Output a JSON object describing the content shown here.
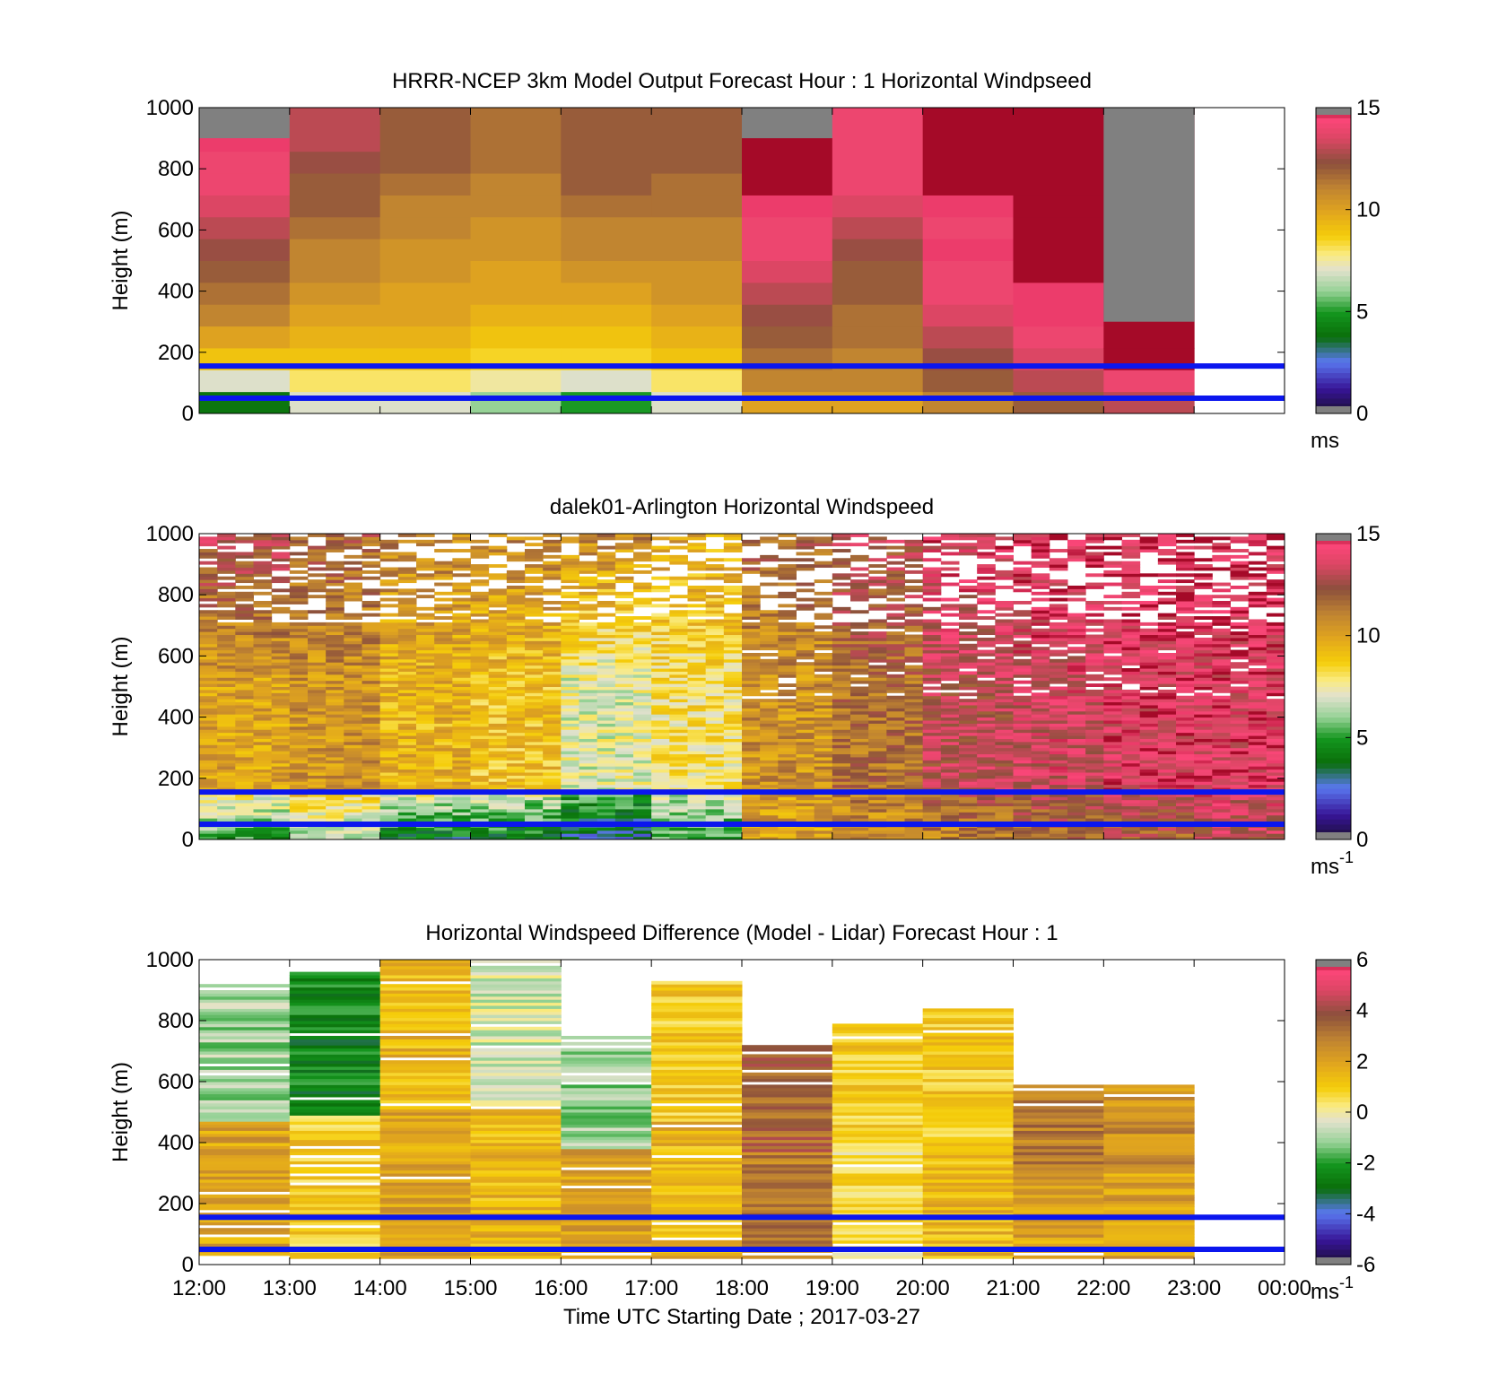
{
  "chart_data": [
    {
      "type": "heatmap",
      "title": "HRRR-NCEP 3km Model Output   Forecast Hour : 1 Horizontal Windpseed",
      "ylabel": "Height (m)",
      "xlabel": "",
      "ylim": [
        0,
        1000
      ],
      "yticks": [
        "0",
        "200",
        "400",
        "600",
        "800",
        "1000"
      ],
      "x_tick_labels": [],
      "colorbar": {
        "min": 0,
        "max": 15,
        "ticks": [
          "0",
          "5",
          "10",
          "15"
        ],
        "unit_base": "ms",
        "unit_exp": ""
      },
      "reference_lines": {
        "heights_m": [
          50,
          155
        ],
        "color": "#0b16ee"
      },
      "grid": false,
      "kind": "model",
      "hours": [
        12,
        13,
        14,
        15,
        16,
        17,
        18,
        19,
        20,
        21,
        22
      ],
      "column_speeds_ms": [
        {
          "hour": "12:00",
          "bottom_to_top": [
            4,
            7,
            9,
            10,
            11,
            11.5,
            12,
            12.5,
            13,
            13.5,
            14,
            14,
            14.5,
            15
          ]
        },
        {
          "hour": "13:00",
          "bottom_to_top": [
            7,
            8,
            9,
            9.5,
            10,
            10.5,
            11,
            11,
            11.5,
            12,
            12,
            12.5,
            13
          ]
        },
        {
          "hour": "14:00",
          "bottom_to_top": [
            7,
            8,
            9,
            9.5,
            10,
            10,
            10.5,
            10.5,
            11,
            11,
            11.5,
            12
          ]
        },
        {
          "hour": "15:00",
          "bottom_to_top": [
            6,
            7.5,
            8.5,
            9,
            9.5,
            10,
            10,
            10.5,
            10.5,
            11,
            11,
            11.5
          ]
        },
        {
          "hour": "16:00",
          "bottom_to_top": [
            5,
            7,
            8.5,
            9,
            9.5,
            10,
            10.5,
            11,
            11,
            11.5,
            12,
            12
          ]
        },
        {
          "hour": "17:00",
          "bottom_to_top": [
            7,
            8,
            9,
            9.5,
            10,
            10.5,
            10.5,
            11,
            11,
            11.5,
            11.5,
            12
          ]
        },
        {
          "hour": "18:00",
          "bottom_to_top": [
            10,
            11,
            11.5,
            12,
            12.5,
            13,
            13.5,
            14,
            14,
            14.5,
            15
          ]
        },
        {
          "hour": "19:00",
          "bottom_to_top": [
            10,
            11,
            11,
            11.5,
            11.5,
            12,
            12,
            12.5,
            13,
            13.5,
            14
          ]
        },
        {
          "hour": "20:00",
          "bottom_to_top": [
            11,
            12,
            12.5,
            13,
            13.5,
            14,
            14,
            14.5,
            14,
            14.5,
            15
          ]
        },
        {
          "hour": "21:00",
          "bottom_to_top": [
            12,
            13,
            13.5,
            14,
            14.5,
            14.5,
            15,
            15,
            15,
            15,
            15
          ]
        },
        {
          "hour": "22:00",
          "bottom_to_top": [
            13,
            14,
            15,
            15
          ]
        }
      ]
    },
    {
      "type": "heatmap",
      "title": "dalek01-Arlington  Horizontal Windspeed",
      "ylabel": "Height (m)",
      "xlabel": "",
      "ylim": [
        0,
        1000
      ],
      "yticks": [
        "0",
        "200",
        "400",
        "600",
        "800",
        "1000"
      ],
      "x_tick_labels": [],
      "colorbar": {
        "min": 0,
        "max": 15,
        "ticks": [
          "0",
          "5",
          "10",
          "15"
        ],
        "unit_base": "ms",
        "unit_exp": "-1"
      },
      "reference_lines": {
        "heights_m": [
          50,
          155
        ],
        "color": "#0b16ee"
      },
      "grid": false,
      "kind": "lidar",
      "columns_per_hour": 5,
      "hours": [
        12,
        13,
        14,
        15,
        16,
        17,
        18,
        19,
        20,
        21,
        22,
        23
      ],
      "typical_speed_profile_ms": [
        {
          "hour": "12:00",
          "low": 5,
          "mid": 10,
          "high": 13
        },
        {
          "hour": "13:00",
          "low": 6,
          "mid": 10.5,
          "high": 12
        },
        {
          "hour": "14:00",
          "low": 4,
          "mid": 9.5,
          "high": 11
        },
        {
          "hour": "15:00",
          "low": 4,
          "mid": 9,
          "high": 11
        },
        {
          "hour": "16:00",
          "low": 3,
          "mid": 7,
          "high": 11
        },
        {
          "hour": "17:00",
          "low": 5,
          "mid": 8,
          "high": 10
        },
        {
          "hour": "18:00",
          "low": 10,
          "mid": 10.5,
          "high": 12
        },
        {
          "hour": "19:00",
          "low": 10.5,
          "mid": 11.5,
          "high": 13
        },
        {
          "hour": "20:00",
          "low": 11,
          "mid": 13,
          "high": 14
        },
        {
          "hour": "21:00",
          "low": 11.5,
          "mid": 13.5,
          "high": 14.5
        },
        {
          "hour": "22:00",
          "low": 12,
          "mid": 14,
          "high": 14.5
        },
        {
          "hour": "23:00",
          "low": 13,
          "mid": 14,
          "high": 14.5
        }
      ]
    },
    {
      "type": "heatmap",
      "title": "Horizontal Windspeed Difference (Model - Lidar) Forecast Hour : 1",
      "ylabel": "Height (m)",
      "xlabel": "Time UTC  Starting Date ; 2017-03-27",
      "ylim": [
        0,
        1000
      ],
      "yticks": [
        "0",
        "200",
        "400",
        "600",
        "800",
        "1000"
      ],
      "x_tick_labels": [
        "12:00",
        "13:00",
        "14:00",
        "15:00",
        "16:00",
        "17:00",
        "18:00",
        "19:00",
        "20:00",
        "21:00",
        "22:00",
        "23:00",
        "00:00"
      ],
      "colorbar": {
        "min": -6,
        "max": 6,
        "ticks": [
          "-6",
          "-4",
          "-2",
          "0",
          "2",
          "4",
          "6"
        ],
        "unit_base": "ms",
        "unit_exp": "-1"
      },
      "reference_lines": {
        "heights_m": [
          50,
          155
        ],
        "color": "#0b16ee"
      },
      "grid": false,
      "kind": "diff",
      "column_differences_ms": [
        {
          "hour": "12:00",
          "top_m": 920,
          "typical": 2,
          "upper_part": -1
        },
        {
          "hour": "13:00",
          "top_m": 960,
          "typical": 1,
          "upper_part": -2.5
        },
        {
          "hour": "14:00",
          "top_m": 1000,
          "typical": 2,
          "upper_part": 1.5
        },
        {
          "hour": "15:00",
          "top_m": 1000,
          "typical": 1.5,
          "upper_part": -0.5
        },
        {
          "hour": "16:00",
          "top_m": 745,
          "typical": 2,
          "upper_part": -1
        },
        {
          "hour": "17:00",
          "top_m": 925,
          "typical": 1.5,
          "upper_part": 1
        },
        {
          "hour": "18:00",
          "top_m": 720,
          "typical": 3,
          "upper_part": 3.5
        },
        {
          "hour": "19:00",
          "top_m": 790,
          "typical": 0.5,
          "upper_part": 1
        },
        {
          "hour": "20:00",
          "top_m": 835,
          "typical": 1.5,
          "upper_part": 1
        },
        {
          "hour": "21:00",
          "top_m": 590,
          "typical": 2,
          "upper_part": 3
        },
        {
          "hour": "22:00",
          "top_m": 590,
          "typical": 2,
          "upper_part": 2.5
        }
      ]
    }
  ]
}
